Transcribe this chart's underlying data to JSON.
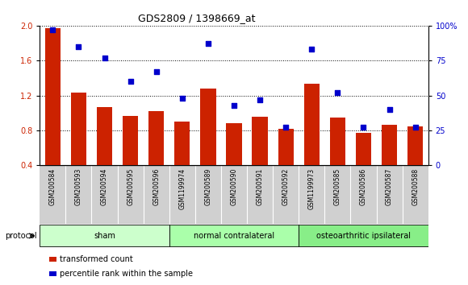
{
  "title": "GDS2809 / 1398669_at",
  "samples": [
    "GSM200584",
    "GSM200593",
    "GSM200594",
    "GSM200595",
    "GSM200596",
    "GSM1199974",
    "GSM200589",
    "GSM200590",
    "GSM200591",
    "GSM200592",
    "GSM1199973",
    "GSM200585",
    "GSM200586",
    "GSM200587",
    "GSM200588"
  ],
  "bar_values": [
    1.97,
    1.23,
    1.07,
    0.97,
    1.02,
    0.9,
    1.28,
    0.88,
    0.96,
    0.82,
    1.33,
    0.95,
    0.77,
    0.86,
    0.85
  ],
  "scatter_values": [
    97,
    85,
    77,
    60,
    67,
    48,
    87,
    43,
    47,
    27,
    83,
    52,
    27,
    40,
    27
  ],
  "bar_color": "#cc2200",
  "scatter_color": "#0000cc",
  "ylim_left": [
    0.4,
    2.0
  ],
  "ylim_right": [
    0,
    100
  ],
  "yticks_left": [
    0.4,
    0.8,
    1.2,
    1.6,
    2.0
  ],
  "yticks_right": [
    0,
    25,
    50,
    75,
    100
  ],
  "ytick_labels_right": [
    "0",
    "25",
    "50",
    "75",
    "100%"
  ],
  "groups": [
    {
      "label": "sham",
      "start": 0,
      "end": 4,
      "color": "#ccffcc"
    },
    {
      "label": "normal contralateral",
      "start": 5,
      "end": 9,
      "color": "#aaffaa"
    },
    {
      "label": "osteoarthritic ipsilateral",
      "start": 10,
      "end": 14,
      "color": "#88ee88"
    }
  ],
  "protocol_label": "protocol",
  "legend_bar_label": "transformed count",
  "legend_scatter_label": "percentile rank within the sample",
  "tick_label_bg": "#d0d0d0",
  "white": "#ffffff",
  "black": "#000000"
}
